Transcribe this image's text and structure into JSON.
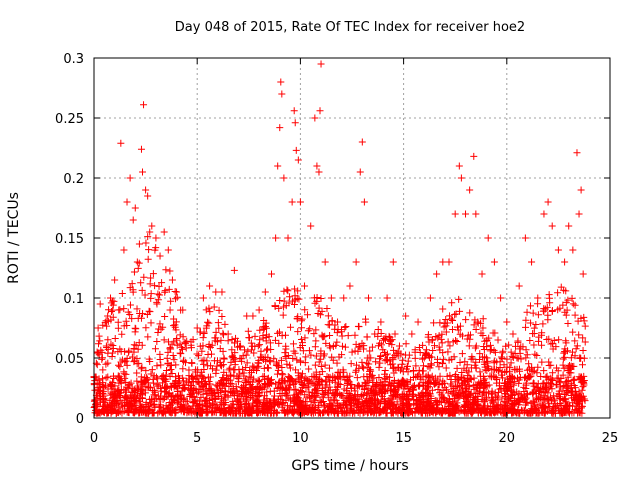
{
  "chart_data": {
    "type": "scatter",
    "title": "Day 048 of 2015, Rate Of TEC Index for receiver hoe2",
    "xlabel": "GPS time / hours",
    "ylabel": "ROTI / TECUs",
    "xlim": [
      0,
      25
    ],
    "ylim": [
      0,
      0.3
    ],
    "xticks": [
      "0",
      "5",
      "10",
      "15",
      "20",
      "25"
    ],
    "yticks": [
      "0",
      "0.05",
      "0.1",
      "0.15",
      "0.2",
      "0.25",
      "0.3"
    ],
    "grid": true,
    "marker": "+",
    "color": "#ff0000",
    "series": [
      {
        "name": "ROTI",
        "points": [
          [
            0.1,
            0.015
          ],
          [
            0.15,
            0.055
          ],
          [
            0.2,
            0.075
          ],
          [
            0.3,
            0.095
          ],
          [
            0.45,
            0.02
          ],
          [
            0.6,
            0.06
          ],
          [
            0.8,
            0.1
          ],
          [
            1.0,
            0.115
          ],
          [
            1.2,
            0.09
          ],
          [
            1.3,
            0.229
          ],
          [
            1.45,
            0.14
          ],
          [
            1.6,
            0.18
          ],
          [
            1.75,
            0.2
          ],
          [
            1.9,
            0.165
          ],
          [
            2.0,
            0.175
          ],
          [
            2.1,
            0.13
          ],
          [
            2.2,
            0.145
          ],
          [
            2.3,
            0.224
          ],
          [
            2.35,
            0.205
          ],
          [
            2.4,
            0.261
          ],
          [
            2.5,
            0.19
          ],
          [
            2.6,
            0.185
          ],
          [
            2.7,
            0.155
          ],
          [
            2.8,
            0.16
          ],
          [
            3.0,
            0.15
          ],
          [
            3.2,
            0.135
          ],
          [
            3.4,
            0.155
          ],
          [
            3.6,
            0.14
          ],
          [
            3.8,
            0.115
          ],
          [
            4.0,
            0.105
          ],
          [
            4.3,
            0.09
          ],
          [
            4.6,
            0.04
          ],
          [
            5.0,
            0.075
          ],
          [
            5.3,
            0.1
          ],
          [
            5.6,
            0.11
          ],
          [
            5.9,
            0.105
          ],
          [
            6.2,
            0.105
          ],
          [
            6.5,
            0.07
          ],
          [
            6.8,
            0.123
          ],
          [
            7.1,
            0.06
          ],
          [
            7.4,
            0.085
          ],
          [
            7.7,
            0.085
          ],
          [
            8.0,
            0.09
          ],
          [
            8.3,
            0.105
          ],
          [
            8.6,
            0.12
          ],
          [
            8.8,
            0.15
          ],
          [
            8.9,
            0.21
          ],
          [
            9.0,
            0.242
          ],
          [
            9.05,
            0.28
          ],
          [
            9.1,
            0.27
          ],
          [
            9.2,
            0.2
          ],
          [
            9.4,
            0.15
          ],
          [
            9.6,
            0.18
          ],
          [
            9.7,
            0.256
          ],
          [
            9.75,
            0.246
          ],
          [
            9.8,
            0.223
          ],
          [
            9.9,
            0.215
          ],
          [
            10.0,
            0.18
          ],
          [
            10.2,
            0.11
          ],
          [
            10.5,
            0.16
          ],
          [
            10.7,
            0.25
          ],
          [
            10.8,
            0.21
          ],
          [
            10.9,
            0.205
          ],
          [
            10.95,
            0.256
          ],
          [
            11.0,
            0.295
          ],
          [
            11.2,
            0.13
          ],
          [
            11.5,
            0.1
          ],
          [
            11.8,
            0.08
          ],
          [
            12.1,
            0.1
          ],
          [
            12.4,
            0.11
          ],
          [
            12.7,
            0.13
          ],
          [
            12.9,
            0.205
          ],
          [
            13.0,
            0.23
          ],
          [
            13.1,
            0.18
          ],
          [
            13.3,
            0.1
          ],
          [
            13.6,
            0.07
          ],
          [
            13.9,
            0.08
          ],
          [
            14.2,
            0.1
          ],
          [
            14.5,
            0.13
          ],
          [
            14.8,
            0.06
          ],
          [
            15.1,
            0.085
          ],
          [
            15.4,
            0.07
          ],
          [
            15.7,
            0.08
          ],
          [
            16.0,
            0.05
          ],
          [
            16.3,
            0.1
          ],
          [
            16.6,
            0.12
          ],
          [
            16.9,
            0.13
          ],
          [
            17.2,
            0.13
          ],
          [
            17.5,
            0.17
          ],
          [
            17.7,
            0.21
          ],
          [
            17.8,
            0.2
          ],
          [
            18.0,
            0.17
          ],
          [
            18.2,
            0.19
          ],
          [
            18.4,
            0.218
          ],
          [
            18.5,
            0.17
          ],
          [
            18.8,
            0.12
          ],
          [
            19.1,
            0.15
          ],
          [
            19.4,
            0.13
          ],
          [
            19.7,
            0.1
          ],
          [
            20.0,
            0.08
          ],
          [
            20.3,
            0.07
          ],
          [
            20.6,
            0.11
          ],
          [
            20.9,
            0.15
          ],
          [
            21.2,
            0.13
          ],
          [
            21.5,
            0.1
          ],
          [
            21.8,
            0.17
          ],
          [
            22.0,
            0.18
          ],
          [
            22.2,
            0.16
          ],
          [
            22.5,
            0.14
          ],
          [
            22.8,
            0.13
          ],
          [
            23.0,
            0.16
          ],
          [
            23.2,
            0.14
          ],
          [
            23.4,
            0.221
          ],
          [
            23.5,
            0.17
          ],
          [
            23.6,
            0.19
          ],
          [
            23.7,
            0.12
          ]
        ]
      }
    ],
    "envelope": {
      "description": "upper boundary of the dense cloud of points, in data units",
      "x": [
        0,
        0.5,
        1,
        1.5,
        2,
        2.5,
        3,
        3.5,
        4,
        4.5,
        5,
        5.5,
        6,
        6.5,
        7,
        7.5,
        8,
        8.5,
        9,
        9.5,
        10,
        10.5,
        11,
        11.5,
        12,
        12.5,
        13,
        13.5,
        14,
        14.5,
        15,
        15.5,
        16,
        16.5,
        17,
        17.5,
        18,
        18.5,
        19,
        19.5,
        20,
        20.5,
        21,
        21.5,
        22,
        22.5,
        23,
        23.5,
        23.8
      ],
      "y": [
        0.06,
        0.08,
        0.1,
        0.1,
        0.13,
        0.15,
        0.14,
        0.13,
        0.1,
        0.07,
        0.06,
        0.09,
        0.09,
        0.07,
        0.06,
        0.07,
        0.07,
        0.09,
        0.1,
        0.11,
        0.1,
        0.1,
        0.1,
        0.08,
        0.07,
        0.08,
        0.09,
        0.07,
        0.07,
        0.08,
        0.06,
        0.06,
        0.06,
        0.08,
        0.09,
        0.1,
        0.1,
        0.09,
        0.08,
        0.07,
        0.06,
        0.06,
        0.09,
        0.1,
        0.11,
        0.11,
        0.1,
        0.1,
        0.08
      ]
    }
  }
}
